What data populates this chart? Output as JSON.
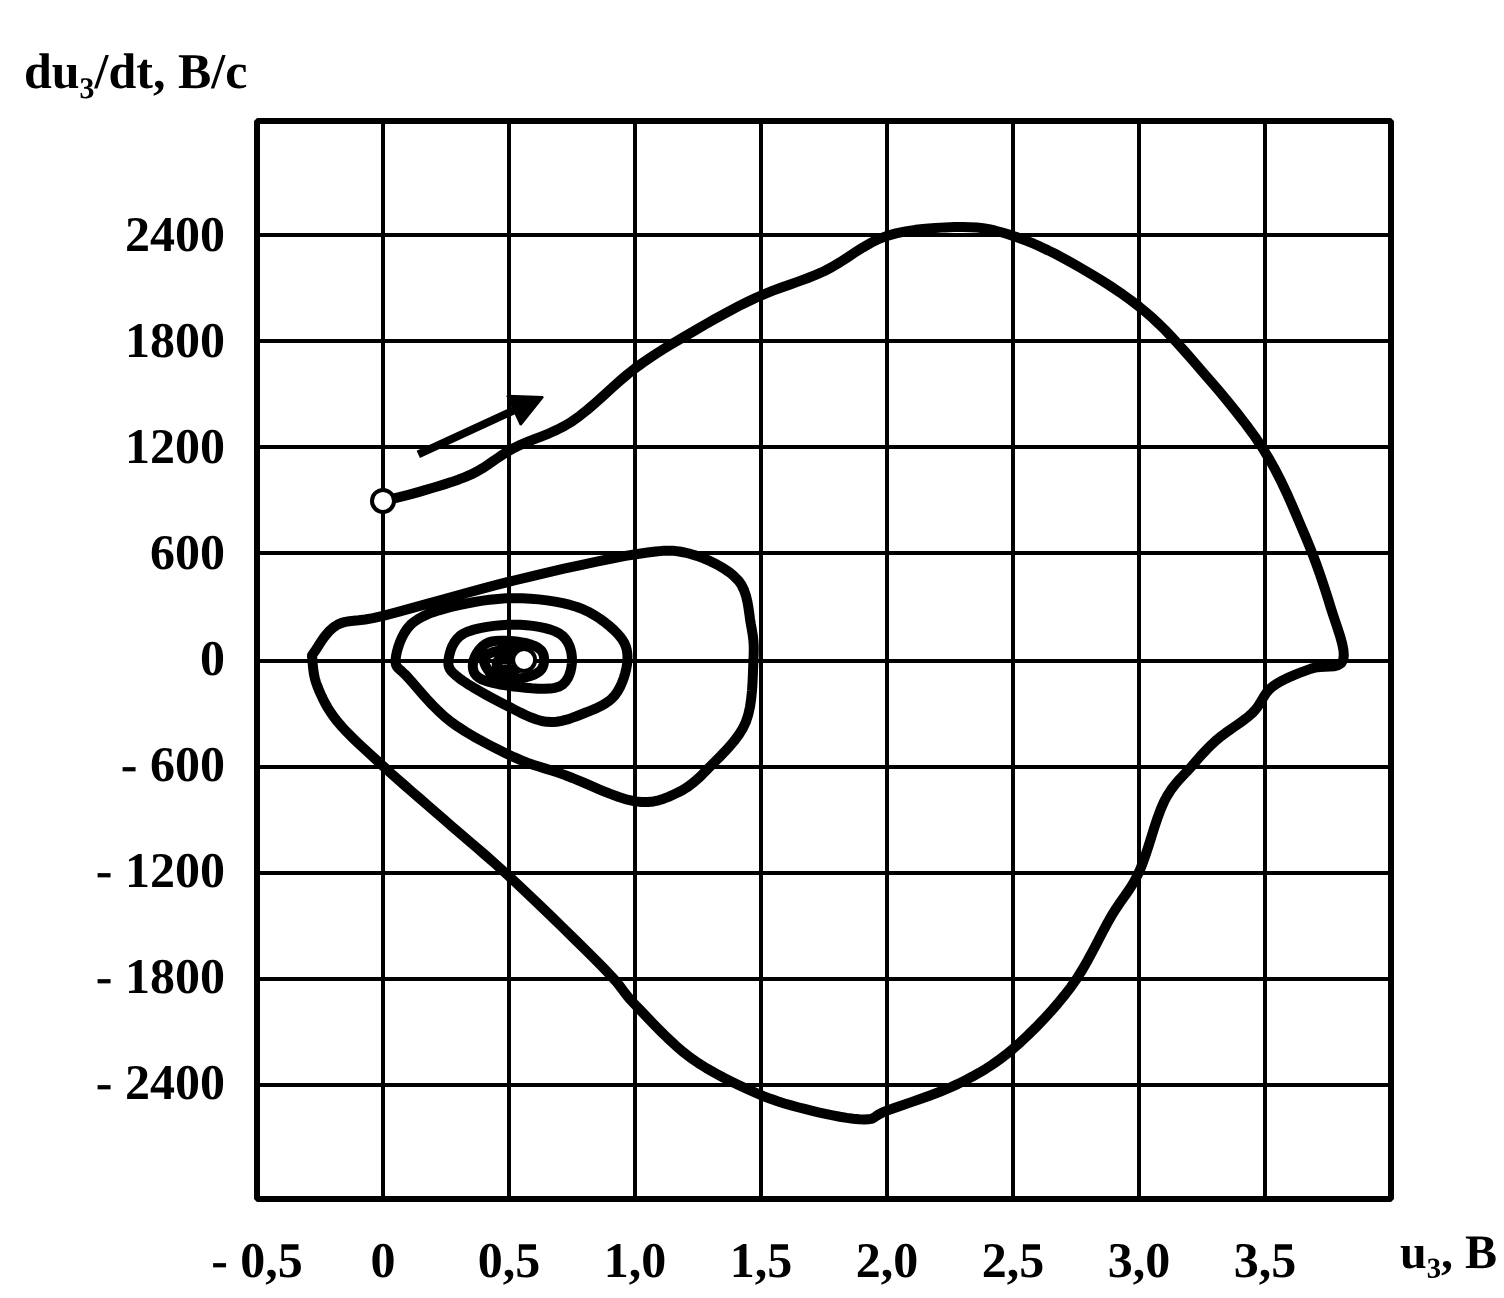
{
  "chart_data": {
    "type": "line",
    "xlabel": "u₃, В",
    "ylabel": "du₃/dt, В/с",
    "xlim": [
      -0.5,
      4.0
    ],
    "ylim": [
      -3050,
      3050
    ],
    "xticks": [
      {
        "value": -0.5,
        "label": "- 0,5"
      },
      0,
      {
        "value": 0.5,
        "label": "0,5"
      },
      {
        "value": 1,
        "label": "1,0"
      },
      {
        "value": 1.5,
        "label": "1,5"
      },
      {
        "value": 2,
        "label": "2,0"
      },
      {
        "value": 2.5,
        "label": "2,5"
      },
      {
        "value": 3,
        "label": "3,0"
      },
      {
        "value": 3.5,
        "label": "3,5"
      }
    ],
    "yticks": [
      {
        "value": -2400,
        "label": "- 2400"
      },
      {
        "value": -1800,
        "label": "- 1800"
      },
      {
        "value": -1200,
        "label": "- 1200"
      },
      {
        "value": -600,
        "label": "- 600"
      },
      0,
      600,
      1200,
      1800,
      2400
    ],
    "grid": true,
    "series": [
      {
        "color": "#000000",
        "x": [
          0,
          0.14,
          0.35,
          0.52,
          0.75,
          1.0,
          1.22,
          1.48,
          1.75,
          2.0,
          2.3,
          2.5,
          2.73,
          3.0,
          3.21,
          3.49,
          3.66,
          3.76,
          3.81,
          3.68,
          3.53,
          3.45,
          3.31,
          3.21,
          3.1,
          3.0,
          2.89,
          2.73,
          2.5,
          2.28,
          2.0,
          1.91,
          1.7,
          1.48,
          1.22,
          1.0,
          0.88,
          0.52,
          0.24,
          0,
          -0.18,
          -0.26,
          -0.28,
          -0.27,
          -0.18,
          0.0,
          0.52,
          1.01,
          1.22,
          1.41,
          1.46,
          1.47,
          1.44,
          1.3,
          1.17,
          1.0,
          0.72,
          0.52,
          0.27,
          0.1,
          0.05,
          0.11,
          0.27,
          0.52,
          0.77,
          0.93,
          0.97,
          0.92,
          0.8,
          0.65,
          0.48,
          0.3,
          0.26,
          0.32,
          0.52,
          0.7,
          0.75,
          0.7,
          0.52,
          0.38,
          0.36,
          0.42,
          0.55,
          0.63,
          0.63,
          0.56,
          0.45,
          0.4,
          0.45,
          0.55,
          0.58,
          0.53,
          0.46,
          0.46,
          0.53,
          0.56
        ],
        "values": [
          900,
          950,
          1050,
          1200,
          1350,
          1650,
          1850,
          2050,
          2200,
          2400,
          2450,
          2400,
          2250,
          2000,
          1700,
          1200,
          700,
          300,
          0,
          -50,
          -150,
          -300,
          -450,
          -600,
          -800,
          -1200,
          -1450,
          -1850,
          -2200,
          -2400,
          -2550,
          -2600,
          -2550,
          -2450,
          -2250,
          -1950,
          -1750,
          -1250,
          -900,
          -600,
          -350,
          -150,
          0,
          50,
          200,
          250,
          450,
          600,
          600,
          450,
          200,
          0,
          -350,
          -600,
          -750,
          -800,
          -650,
          -550,
          -350,
          -100,
          0,
          200,
          300,
          350,
          300,
          150,
          0,
          -200,
          -300,
          -350,
          -250,
          -100,
          0,
          150,
          200,
          150,
          0,
          -150,
          -150,
          -100,
          0,
          100,
          100,
          50,
          -50,
          -100,
          -100,
          0,
          50,
          50,
          0,
          -50,
          -50,
          0,
          0,
          0
        ]
      },
      {
        "type": "scatter",
        "color": "#ffffff",
        "marker": "circle",
        "x": [
          0,
          0.56
        ],
        "values": [
          900,
          0
        ]
      }
    ]
  }
}
